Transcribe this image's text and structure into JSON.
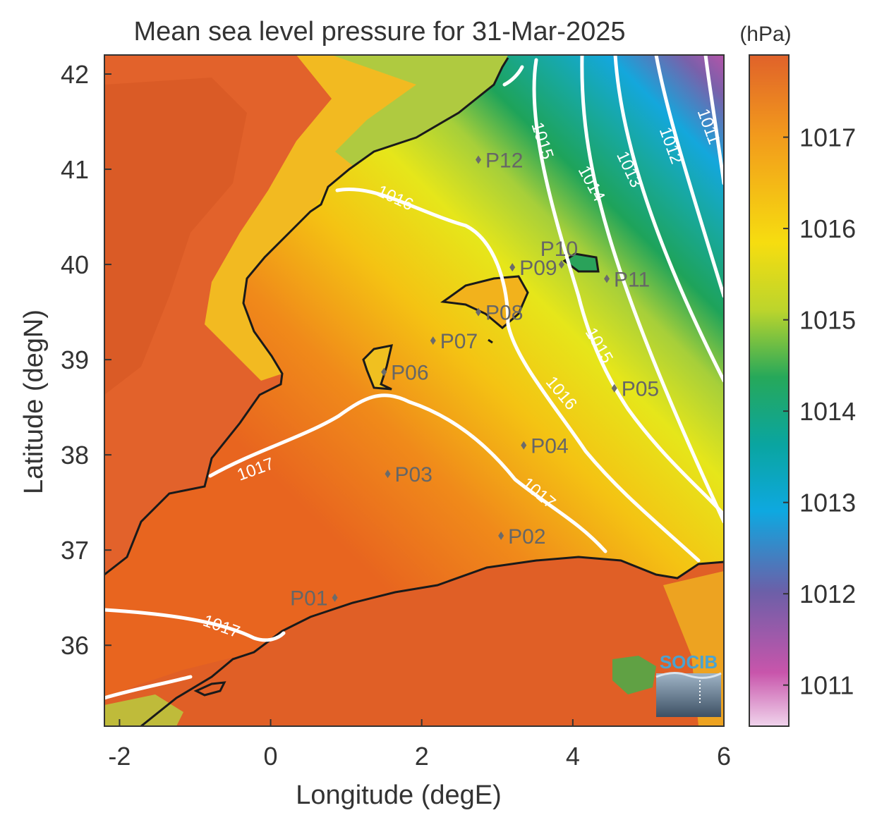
{
  "title": "Mean sea level pressure for 31-Mar-2025",
  "xlabel": "Longitude (degE)",
  "ylabel": "Latitude (degN)",
  "x_ticks": [
    "-2",
    "0",
    "2",
    "4",
    "6"
  ],
  "y_ticks": [
    "42",
    "41",
    "40",
    "39",
    "38",
    "37",
    "36"
  ],
  "colorbar": {
    "unit": "(hPa)",
    "ticks": [
      "1017",
      "1016",
      "1015",
      "1014",
      "1013",
      "1012",
      "1011"
    ]
  },
  "logo_text": "SOCIB",
  "chart_data": {
    "type": "map",
    "title": "Mean sea level pressure for 31-Mar-2025",
    "xlabel": "Longitude (degE)",
    "ylabel": "Latitude (degN)",
    "xlim": [
      -2.2,
      6.0
    ],
    "ylim": [
      35.15,
      42.2
    ],
    "colorbar_range_hPa": [
      1010.55,
      1017.9
    ],
    "contour_levels": [
      {
        "value": "1011",
        "label_lon": 5.8,
        "label_lat": 41.45
      },
      {
        "value": "1012",
        "label_lon": 5.3,
        "label_lat": 41.25
      },
      {
        "value": "1013",
        "label_lon": 4.75,
        "label_lat": 41.0
      },
      {
        "value": "1014",
        "label_lon": 4.25,
        "label_lat": 40.85
      },
      {
        "value": "1015",
        "label_lon": 3.6,
        "label_lat": 41.3
      },
      {
        "value": "1015",
        "label_lon": 4.35,
        "label_lat": 39.15
      },
      {
        "value": "1016",
        "label_lon": 1.65,
        "label_lat": 40.7
      },
      {
        "value": "1016",
        "label_lon": 3.85,
        "label_lat": 38.65
      },
      {
        "value": "1017",
        "label_lon": -0.2,
        "label_lat": 37.85
      },
      {
        "value": "1017",
        "label_lon": 3.55,
        "label_lat": 37.6
      },
      {
        "value": "1017",
        "label_lon": -0.65,
        "label_lat": 36.2
      }
    ],
    "points": [
      {
        "name": "P01",
        "lon": 0.85,
        "lat": 36.5
      },
      {
        "name": "P02",
        "lon": 3.05,
        "lat": 37.15
      },
      {
        "name": "P03",
        "lon": 1.55,
        "lat": 37.8
      },
      {
        "name": "P04",
        "lon": 3.35,
        "lat": 38.1
      },
      {
        "name": "P05",
        "lon": 4.55,
        "lat": 38.7
      },
      {
        "name": "P06",
        "lon": 1.5,
        "lat": 38.87
      },
      {
        "name": "P07",
        "lon": 2.15,
        "lat": 39.2
      },
      {
        "name": "P08",
        "lon": 2.75,
        "lat": 39.5
      },
      {
        "name": "P09",
        "lon": 3.2,
        "lat": 39.97
      },
      {
        "name": "P10",
        "lon": 3.85,
        "lat": 40.0
      },
      {
        "name": "P11",
        "lon": 4.45,
        "lat": 39.85
      },
      {
        "name": "P12",
        "lon": 2.75,
        "lat": 41.1
      }
    ]
  }
}
